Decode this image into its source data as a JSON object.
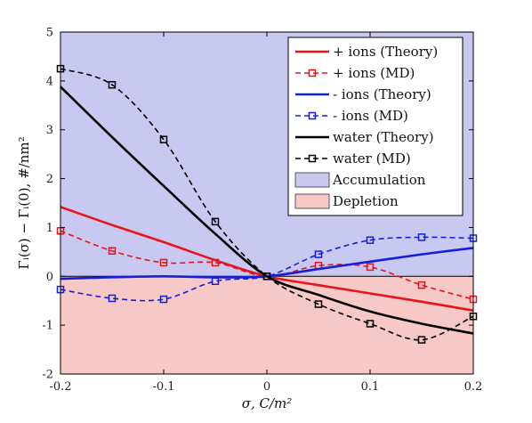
{
  "chart_data": {
    "type": "line",
    "title": "",
    "xlabel": "σ, C/m²",
    "ylabel": "Γᵢ(σ) − Γᵢ(0), #/nm²",
    "xlim": [
      -0.2,
      0.2
    ],
    "ylim": [
      -2,
      5
    ],
    "xticks": [
      "-0.2",
      "-0.1",
      "0",
      "0.1",
      "0.2"
    ],
    "yticks": [
      "-2",
      "-1",
      "0",
      "1",
      "2",
      "3",
      "4",
      "5"
    ],
    "legend_position": "top-right",
    "regions": [
      {
        "name": "Accumulation",
        "y_from": 0,
        "y_to": 5,
        "color": "#c8c8f0"
      },
      {
        "name": "Depletion",
        "y_from": -2,
        "y_to": 0,
        "color": "#f6c8c6"
      }
    ],
    "series": [
      {
        "name": "+ ions (Theory)",
        "color": "#e8141c",
        "style": "solid",
        "marker": "none",
        "x": [
          -0.2,
          -0.15,
          -0.1,
          -0.05,
          0,
          0.05,
          0.1,
          0.15,
          0.2
        ],
        "y": [
          1.42,
          1.05,
          0.7,
          0.33,
          0,
          -0.18,
          -0.35,
          -0.52,
          -0.7
        ]
      },
      {
        "name": "+ ions (MD)",
        "color": "#e8141c",
        "style": "dashed",
        "marker": "square",
        "x": [
          -0.2,
          -0.15,
          -0.1,
          -0.05,
          0,
          0.05,
          0.1,
          0.15,
          0.2
        ],
        "y": [
          0.93,
          0.52,
          0.28,
          0.28,
          0,
          0.22,
          0.19,
          -0.18,
          -0.47
        ]
      },
      {
        "name": "- ions (Theory)",
        "color": "#1420d8",
        "style": "solid",
        "marker": "none",
        "x": [
          -0.2,
          -0.15,
          -0.1,
          -0.05,
          0,
          0.05,
          0.1,
          0.15,
          0.2
        ],
        "y": [
          -0.05,
          -0.02,
          0.0,
          -0.02,
          0,
          0.15,
          0.3,
          0.45,
          0.58
        ]
      },
      {
        "name": "- ions (MD)",
        "color": "#1420d8",
        "style": "dashed",
        "marker": "square",
        "x": [
          -0.2,
          -0.15,
          -0.1,
          -0.05,
          0,
          0.05,
          0.1,
          0.15,
          0.2
        ],
        "y": [
          -0.27,
          -0.45,
          -0.47,
          -0.1,
          0,
          0.45,
          0.74,
          0.8,
          0.78
        ]
      },
      {
        "name": "water (Theory)",
        "color": "#000000",
        "style": "solid",
        "marker": "none",
        "x": [
          -0.2,
          -0.15,
          -0.1,
          -0.05,
          0,
          0.05,
          0.1,
          0.15,
          0.2
        ],
        "y": [
          3.88,
          2.85,
          1.85,
          0.87,
          0,
          -0.38,
          -0.72,
          -0.97,
          -1.17
        ]
      },
      {
        "name": "water (MD)",
        "color": "#000000",
        "style": "dashed",
        "marker": "square",
        "x": [
          -0.2,
          -0.15,
          -0.1,
          -0.05,
          0,
          0.05,
          0.1,
          0.15,
          0.2
        ],
        "y": [
          4.25,
          3.92,
          2.8,
          1.12,
          0,
          -0.57,
          -0.97,
          -1.3,
          -0.82
        ]
      }
    ]
  }
}
